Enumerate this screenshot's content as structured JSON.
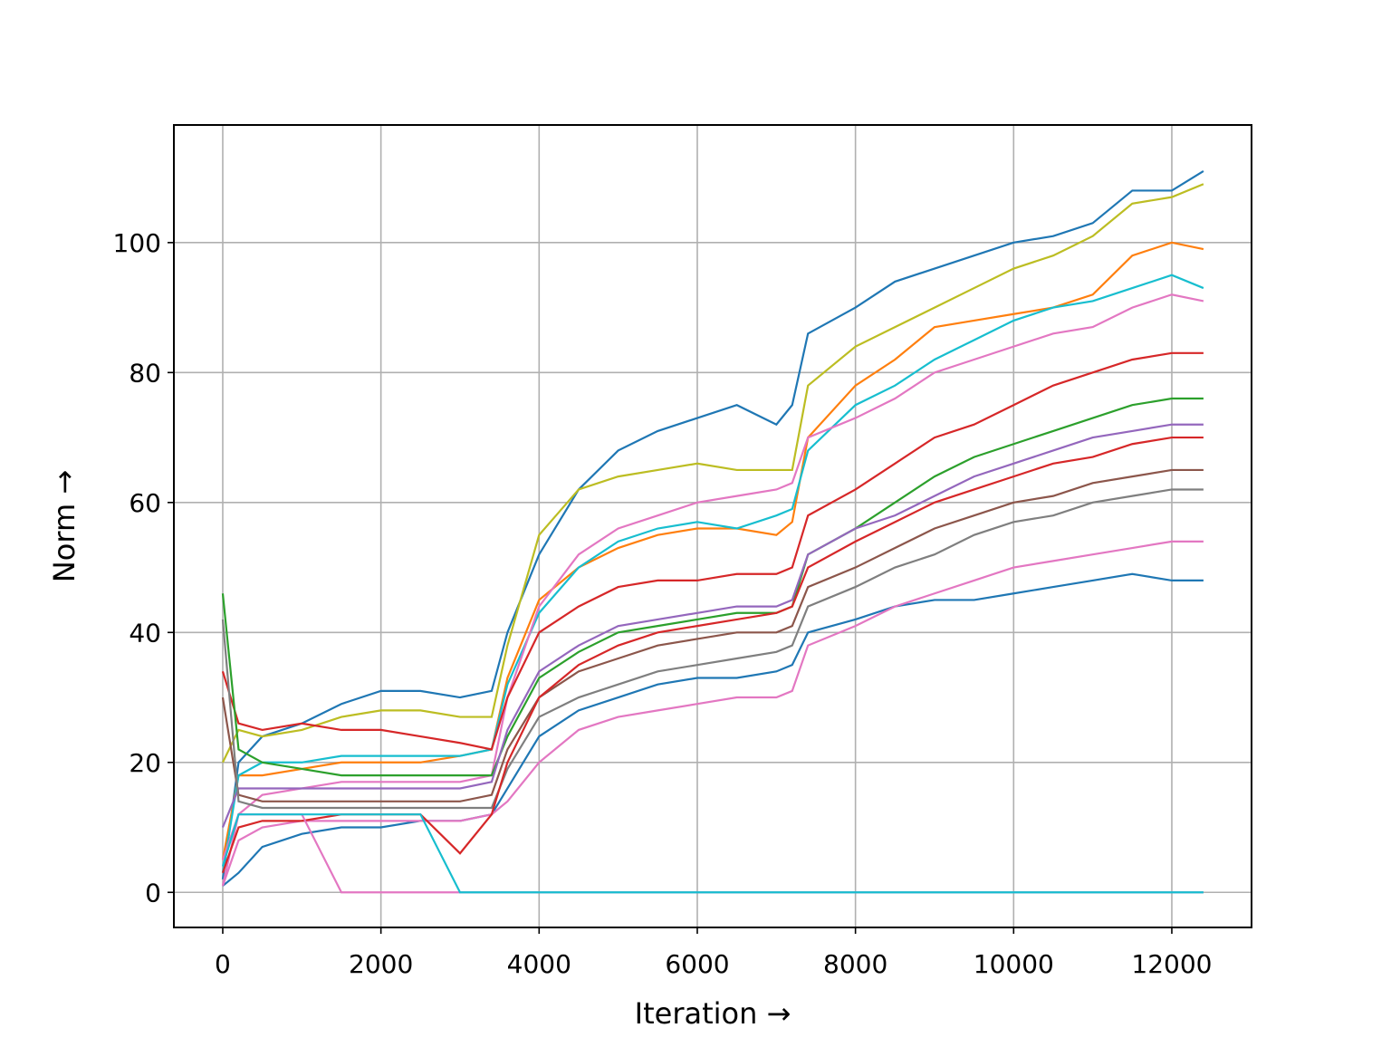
{
  "chart_data": {
    "type": "line",
    "xlabel": "Iteration →",
    "ylabel": "Norm →",
    "xlim": [
      -618,
      13008
    ],
    "ylim": [
      -5.4,
      118.1
    ],
    "xticks": [
      0,
      2000,
      4000,
      6000,
      8000,
      10000,
      12000
    ],
    "yticks": [
      0,
      20,
      40,
      60,
      80,
      100
    ],
    "grid": true,
    "x": [
      0,
      200,
      500,
      1000,
      1500,
      2000,
      2500,
      3000,
      3400,
      3600,
      4000,
      4500,
      5000,
      5500,
      6000,
      6500,
      7000,
      7200,
      7400,
      8000,
      8500,
      9000,
      9500,
      10000,
      10500,
      11000,
      11500,
      12000,
      12400
    ],
    "series": [
      {
        "color": "#1f77b4",
        "values": [
          2,
          20,
          24,
          26,
          29,
          31,
          31,
          30,
          31,
          40,
          52,
          62,
          68,
          71,
          73,
          75,
          72,
          75,
          86,
          90,
          94,
          96,
          98,
          100,
          101,
          103,
          108,
          108,
          111
        ]
      },
      {
        "color": "#bcbd22",
        "values": [
          20,
          25,
          24,
          25,
          27,
          28,
          28,
          27,
          27,
          38,
          55,
          62,
          64,
          65,
          66,
          65,
          65,
          65,
          78,
          84,
          87,
          90,
          93,
          96,
          98,
          101,
          106,
          107,
          109
        ]
      },
      {
        "color": "#ff7f0e",
        "values": [
          5,
          18,
          18,
          19,
          20,
          20,
          20,
          21,
          22,
          33,
          45,
          50,
          53,
          55,
          56,
          56,
          55,
          57,
          70,
          78,
          82,
          87,
          88,
          89,
          90,
          92,
          98,
          100,
          99
        ]
      },
      {
        "color": "#17becf",
        "values": [
          3,
          18,
          20,
          20,
          21,
          21,
          21,
          21,
          22,
          32,
          43,
          50,
          54,
          56,
          57,
          56,
          58,
          59,
          68,
          75,
          78,
          82,
          85,
          88,
          90,
          91,
          93,
          95,
          93
        ]
      },
      {
        "color": "#e377c2",
        "values": [
          1,
          12,
          15,
          16,
          17,
          17,
          17,
          17,
          18,
          30,
          44,
          52,
          56,
          58,
          60,
          61,
          62,
          63,
          70,
          73,
          76,
          80,
          82,
          84,
          86,
          87,
          90,
          92,
          91
        ]
      },
      {
        "color": "#d62728",
        "values": [
          34,
          26,
          25,
          26,
          25,
          25,
          24,
          23,
          22,
          30,
          40,
          44,
          47,
          48,
          48,
          49,
          49,
          50,
          58,
          62,
          66,
          70,
          72,
          75,
          78,
          80,
          82,
          83,
          83
        ]
      },
      {
        "color": "#2ca02c",
        "values": [
          46,
          22,
          20,
          19,
          18,
          18,
          18,
          18,
          18,
          24,
          33,
          37,
          40,
          41,
          42,
          43,
          43,
          44,
          52,
          56,
          60,
          64,
          67,
          69,
          71,
          73,
          75,
          76,
          76
        ]
      },
      {
        "color": "#9467bd",
        "values": [
          10,
          16,
          16,
          16,
          16,
          16,
          16,
          16,
          17,
          25,
          34,
          38,
          41,
          42,
          43,
          44,
          44,
          45,
          52,
          56,
          58,
          61,
          64,
          66,
          68,
          70,
          71,
          72,
          72
        ]
      },
      {
        "color": "#8c564b",
        "values": [
          30,
          15,
          14,
          14,
          14,
          14,
          14,
          14,
          15,
          22,
          30,
          34,
          36,
          38,
          39,
          40,
          40,
          41,
          47,
          50,
          53,
          56,
          58,
          60,
          61,
          63,
          64,
          65,
          65
        ]
      },
      {
        "color": "#7f7f7f",
        "values": [
          42,
          14,
          13,
          13,
          13,
          13,
          13,
          13,
          13,
          19,
          27,
          30,
          32,
          34,
          35,
          36,
          37,
          38,
          44,
          47,
          50,
          52,
          55,
          57,
          58,
          60,
          61,
          62,
          62
        ]
      },
      {
        "color": "#1f77b4",
        "values": [
          1,
          3,
          7,
          9,
          10,
          10,
          11,
          11,
          12,
          16,
          24,
          28,
          30,
          32,
          33,
          33,
          34,
          35,
          40,
          42,
          44,
          45,
          45,
          46,
          47,
          48,
          49,
          48,
          48
        ]
      },
      {
        "color": "#e377c2",
        "values": [
          1,
          8,
          10,
          11,
          11,
          11,
          11,
          11,
          12,
          14,
          20,
          25,
          27,
          28,
          29,
          30,
          30,
          31,
          38,
          41,
          44,
          46,
          48,
          50,
          51,
          52,
          53,
          54,
          54
        ]
      },
      {
        "color": "#d62728",
        "values": [
          3,
          10,
          11,
          11,
          12,
          12,
          12,
          6,
          12,
          20,
          30,
          35,
          38,
          40,
          41,
          42,
          43,
          44,
          50,
          54,
          57,
          60,
          62,
          64,
          66,
          67,
          69,
          70,
          70
        ]
      },
      {
        "color": "#e377c2",
        "values": [
          5,
          12,
          12,
          12,
          0,
          0,
          0,
          0,
          0,
          0,
          0,
          0,
          0,
          0,
          0,
          0,
          0,
          0,
          0,
          0,
          0,
          0,
          0,
          0,
          0,
          0,
          0,
          0,
          0
        ]
      },
      {
        "color": "#17becf",
        "values": [
          4,
          12,
          12,
          12,
          12,
          12,
          12,
          0,
          0,
          0,
          0,
          0,
          0,
          0,
          0,
          0,
          0,
          0,
          0,
          0,
          0,
          0,
          0,
          0,
          0,
          0,
          0,
          0,
          0
        ]
      }
    ]
  }
}
